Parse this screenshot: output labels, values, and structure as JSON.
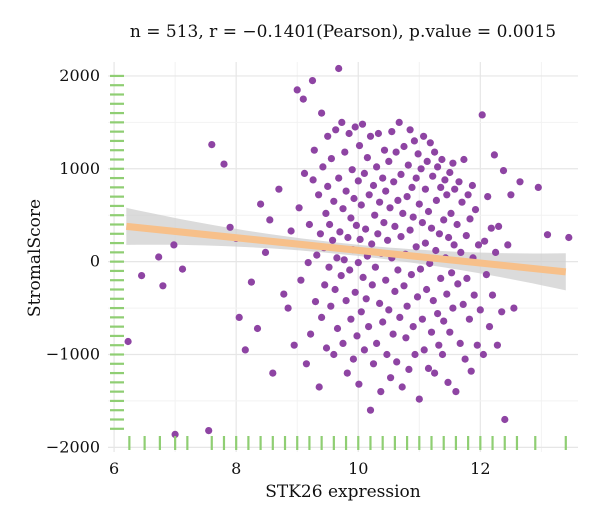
{
  "chart_data": {
    "type": "scatter",
    "title": "n = 513, r = −0.1401(Pearson), p.value = 0.0015",
    "xlabel": "STK26 expression",
    "ylabel": "StromalScore",
    "xlim": [
      5.9,
      13.6
    ],
    "ylim": [
      -2050,
      2150
    ],
    "xticks": [
      6,
      8,
      10,
      12
    ],
    "yticks": [
      -2000,
      -1000,
      0,
      1000,
      2000
    ],
    "ytick_labels": [
      "−2000",
      "−1000",
      "0",
      "1000",
      "2000"
    ],
    "grid": true,
    "point_color": "#8e44a3",
    "rug_color": "#8fce73",
    "regression": {
      "color": "#f7c08a",
      "band_color": "#cfcfcf",
      "x": [
        6.2,
        13.4
      ],
      "y": [
        380,
        -110
      ],
      "band_halfwidth_ends": 200,
      "band_halfwidth_center": 60
    },
    "points": [
      [
        6.23,
        -860
      ],
      [
        6.45,
        -150
      ],
      [
        6.73,
        50
      ],
      [
        6.8,
        -260
      ],
      [
        6.98,
        180
      ],
      [
        7.0,
        -1860
      ],
      [
        7.12,
        -80
      ],
      [
        7.6,
        1260
      ],
      [
        7.55,
        -1820
      ],
      [
        7.8,
        1050
      ],
      [
        7.9,
        370
      ],
      [
        8.0,
        250
      ],
      [
        8.05,
        -600
      ],
      [
        8.15,
        -950
      ],
      [
        8.25,
        -220
      ],
      [
        8.35,
        -720
      ],
      [
        8.4,
        620
      ],
      [
        8.48,
        100
      ],
      [
        8.55,
        450
      ],
      [
        8.6,
        -1200
      ],
      [
        8.7,
        780
      ],
      [
        8.78,
        -350
      ],
      [
        8.85,
        -500
      ],
      [
        8.9,
        330
      ],
      [
        8.95,
        -900
      ],
      [
        9.0,
        1850
      ],
      [
        9.03,
        580
      ],
      [
        9.06,
        -200
      ],
      [
        9.1,
        1750
      ],
      [
        9.12,
        950
      ],
      [
        9.15,
        -1100
      ],
      [
        9.18,
        -10
      ],
      [
        9.2,
        400
      ],
      [
        9.22,
        -780
      ],
      [
        9.25,
        1950
      ],
      [
        9.26,
        880
      ],
      [
        9.28,
        1200
      ],
      [
        9.3,
        -430
      ],
      [
        9.32,
        70
      ],
      [
        9.35,
        720
      ],
      [
        9.36,
        -1350
      ],
      [
        9.38,
        300
      ],
      [
        9.4,
        1600
      ],
      [
        9.4,
        -600
      ],
      [
        9.42,
        1020
      ],
      [
        9.44,
        150
      ],
      [
        9.45,
        -250
      ],
      [
        9.47,
        520
      ],
      [
        9.48,
        -930
      ],
      [
        9.5,
        1350
      ],
      [
        9.5,
        810
      ],
      [
        9.52,
        -60
      ],
      [
        9.53,
        400
      ],
      [
        9.55,
        -480
      ],
      [
        9.56,
        1110
      ],
      [
        9.58,
        230
      ],
      [
        9.6,
        -1000
      ],
      [
        9.6,
        650
      ],
      [
        9.62,
        -300
      ],
      [
        9.63,
        1420
      ],
      [
        9.65,
        40
      ],
      [
        9.66,
        -720
      ],
      [
        9.68,
        900
      ],
      [
        9.68,
        2080
      ],
      [
        9.7,
        320
      ],
      [
        9.72,
        -150
      ],
      [
        9.73,
        1500
      ],
      [
        9.75,
        -880
      ],
      [
        9.75,
        570
      ],
      [
        9.77,
        20
      ],
      [
        9.78,
        1180
      ],
      [
        9.8,
        -420
      ],
      [
        9.8,
        760
      ],
      [
        9.82,
        -1200
      ],
      [
        9.83,
        260
      ],
      [
        9.85,
        1380
      ],
      [
        9.86,
        -90
      ],
      [
        9.88,
        470
      ],
      [
        9.88,
        -620
      ],
      [
        9.9,
        990
      ],
      [
        9.91,
        130
      ],
      [
        9.92,
        -1050
      ],
      [
        9.93,
        680
      ],
      [
        9.95,
        -330
      ],
      [
        9.95,
        1450
      ],
      [
        9.97,
        390
      ],
      [
        9.98,
        -800
      ],
      [
        10.0,
        870
      ],
      [
        10.0,
        -10
      ],
      [
        10.01,
        -1320
      ],
      [
        10.02,
        1250
      ],
      [
        10.03,
        240
      ],
      [
        10.05,
        -540
      ],
      [
        10.05,
        610
      ],
      [
        10.07,
        1480
      ],
      [
        10.08,
        -170
      ],
      [
        10.1,
        950
      ],
      [
        10.1,
        -950
      ],
      [
        10.12,
        350
      ],
      [
        10.13,
        -400
      ],
      [
        10.15,
        1120
      ],
      [
        10.15,
        60
      ],
      [
        10.17,
        -700
      ],
      [
        10.18,
        720
      ],
      [
        10.2,
        -1600
      ],
      [
        10.2,
        1350
      ],
      [
        10.22,
        190
      ],
      [
        10.23,
        -250
      ],
      [
        10.25,
        820
      ],
      [
        10.25,
        -1100
      ],
      [
        10.27,
        500
      ],
      [
        10.28,
        -60
      ],
      [
        10.3,
        1020
      ],
      [
        10.3,
        -880
      ],
      [
        10.32,
        300
      ],
      [
        10.33,
        1380
      ],
      [
        10.35,
        -450
      ],
      [
        10.35,
        640
      ],
      [
        10.37,
        -1400
      ],
      [
        10.38,
        90
      ],
      [
        10.4,
        900
      ],
      [
        10.4,
        -650
      ],
      [
        10.42,
        420
      ],
      [
        10.43,
        1200
      ],
      [
        10.45,
        -200
      ],
      [
        10.45,
        760
      ],
      [
        10.47,
        -1000
      ],
      [
        10.48,
        230
      ],
      [
        10.5,
        1080
      ],
      [
        10.5,
        -520
      ],
      [
        10.52,
        580
      ],
      [
        10.53,
        -1250
      ],
      [
        10.55,
        1400
      ],
      [
        10.55,
        40
      ],
      [
        10.57,
        -780
      ],
      [
        10.58,
        860
      ],
      [
        10.6,
        -320
      ],
      [
        10.6,
        380
      ],
      [
        10.62,
        1180
      ],
      [
        10.63,
        -1080
      ],
      [
        10.65,
        660
      ],
      [
        10.65,
        -90
      ],
      [
        10.67,
        1500
      ],
      [
        10.68,
        -600
      ],
      [
        10.7,
        270
      ],
      [
        10.7,
        940
      ],
      [
        10.72,
        -1350
      ],
      [
        10.73,
        520
      ],
      [
        10.75,
        -260
      ],
      [
        10.75,
        1240
      ],
      [
        10.77,
        80
      ],
      [
        10.78,
        -820
      ],
      [
        10.8,
        700
      ],
      [
        10.8,
        -480
      ],
      [
        10.82,
        1040
      ],
      [
        10.83,
        -1160
      ],
      [
        10.85,
        340
      ],
      [
        10.85,
        1420
      ],
      [
        10.87,
        -140
      ],
      [
        10.88,
        800
      ],
      [
        10.9,
        -700
      ],
      [
        10.9,
        480
      ],
      [
        10.92,
        1300
      ],
      [
        10.93,
        -1000
      ],
      [
        10.95,
        160
      ],
      [
        10.95,
        900
      ],
      [
        10.97,
        -380
      ],
      [
        10.98,
        1160
      ],
      [
        11.0,
        -1480
      ],
      [
        11.0,
        620
      ],
      [
        11.02,
        -80
      ],
      [
        11.03,
        1000
      ],
      [
        11.05,
        -620
      ],
      [
        11.05,
        420
      ],
      [
        11.07,
        1350
      ],
      [
        11.08,
        -950
      ],
      [
        11.1,
        200
      ],
      [
        11.1,
        780
      ],
      [
        11.12,
        -300
      ],
      [
        11.13,
        1080
      ],
      [
        11.15,
        -1150
      ],
      [
        11.15,
        540
      ],
      [
        11.17,
        -20
      ],
      [
        11.18,
        1280
      ],
      [
        11.2,
        -760
      ],
      [
        11.2,
        360
      ],
      [
        11.22,
        920
      ],
      [
        11.23,
        -420
      ],
      [
        11.25,
        1180
      ],
      [
        11.25,
        -1200
      ],
      [
        11.27,
        120
      ],
      [
        11.28,
        660
      ],
      [
        11.3,
        -560
      ],
      [
        11.3,
        1020
      ],
      [
        11.32,
        -900
      ],
      [
        11.33,
        300
      ],
      [
        11.35,
        800
      ],
      [
        11.35,
        -180
      ],
      [
        11.37,
        1100
      ],
      [
        11.38,
        -1000
      ],
      [
        11.4,
        450
      ],
      [
        11.4,
        -640
      ],
      [
        11.42,
        880
      ],
      [
        11.43,
        40
      ],
      [
        11.45,
        -350
      ],
      [
        11.45,
        720
      ],
      [
        11.47,
        -1300
      ],
      [
        11.48,
        260
      ],
      [
        11.5,
        960
      ],
      [
        11.5,
        -760
      ],
      [
        11.52,
        520
      ],
      [
        11.53,
        -120
      ],
      [
        11.55,
        1060
      ],
      [
        11.55,
        -500
      ],
      [
        11.57,
        180
      ],
      [
        11.58,
        780
      ],
      [
        11.6,
        -1400
      ],
      [
        11.62,
        400
      ],
      [
        11.63,
        -240
      ],
      [
        11.65,
        860
      ],
      [
        11.67,
        -880
      ],
      [
        11.68,
        100
      ],
      [
        11.7,
        640
      ],
      [
        11.72,
        -460
      ],
      [
        11.73,
        1100
      ],
      [
        11.75,
        -1050
      ],
      [
        11.77,
        280
      ],
      [
        11.78,
        -180
      ],
      [
        11.8,
        720
      ],
      [
        11.82,
        -620
      ],
      [
        11.83,
        460
      ],
      [
        11.85,
        -1180
      ],
      [
        11.87,
        820
      ],
      [
        11.88,
        40
      ],
      [
        11.9,
        -360
      ],
      [
        11.92,
        560
      ],
      [
        11.95,
        -900
      ],
      [
        11.97,
        180
      ],
      [
        12.0,
        -520
      ],
      [
        12.03,
        1580
      ],
      [
        12.05,
        -1000
      ],
      [
        12.07,
        220
      ],
      [
        12.1,
        -140
      ],
      [
        12.12,
        700
      ],
      [
        12.15,
        -700
      ],
      [
        12.18,
        360
      ],
      [
        12.2,
        -360
      ],
      [
        12.23,
        1150
      ],
      [
        12.25,
        100
      ],
      [
        12.28,
        -900
      ],
      [
        12.3,
        380
      ],
      [
        12.35,
        -540
      ],
      [
        12.38,
        980
      ],
      [
        12.4,
        -1700
      ],
      [
        12.45,
        180
      ],
      [
        12.5,
        720
      ],
      [
        12.55,
        -500
      ],
      [
        12.65,
        860
      ],
      [
        12.95,
        800
      ],
      [
        13.1,
        290
      ],
      [
        13.45,
        260
      ]
    ],
    "rug_x": [
      6.25,
      6.5,
      6.75,
      7.0,
      7.2,
      7.6,
      7.8,
      8.0,
      8.2,
      8.4,
      8.6,
      8.8,
      9.0,
      9.2,
      9.4,
      9.6,
      9.8,
      10.0,
      10.2,
      10.4,
      10.6,
      10.8,
      11.0,
      11.2,
      11.4,
      11.6,
      11.8,
      12.0,
      12.2,
      12.4,
      12.6,
      12.9,
      13.4
    ],
    "rug_y": [
      2000,
      1900,
      1800,
      1700,
      1600,
      1500,
      1400,
      1300,
      1200,
      1100,
      1000,
      900,
      800,
      700,
      600,
      500,
      400,
      300,
      200,
      100,
      0,
      -100,
      -200,
      -300,
      -400,
      -500,
      -600,
      -700,
      -800,
      -900,
      -1000,
      -1100,
      -1200,
      -1300,
      -1400,
      -1500,
      -1600,
      -1700,
      -1800
    ]
  }
}
